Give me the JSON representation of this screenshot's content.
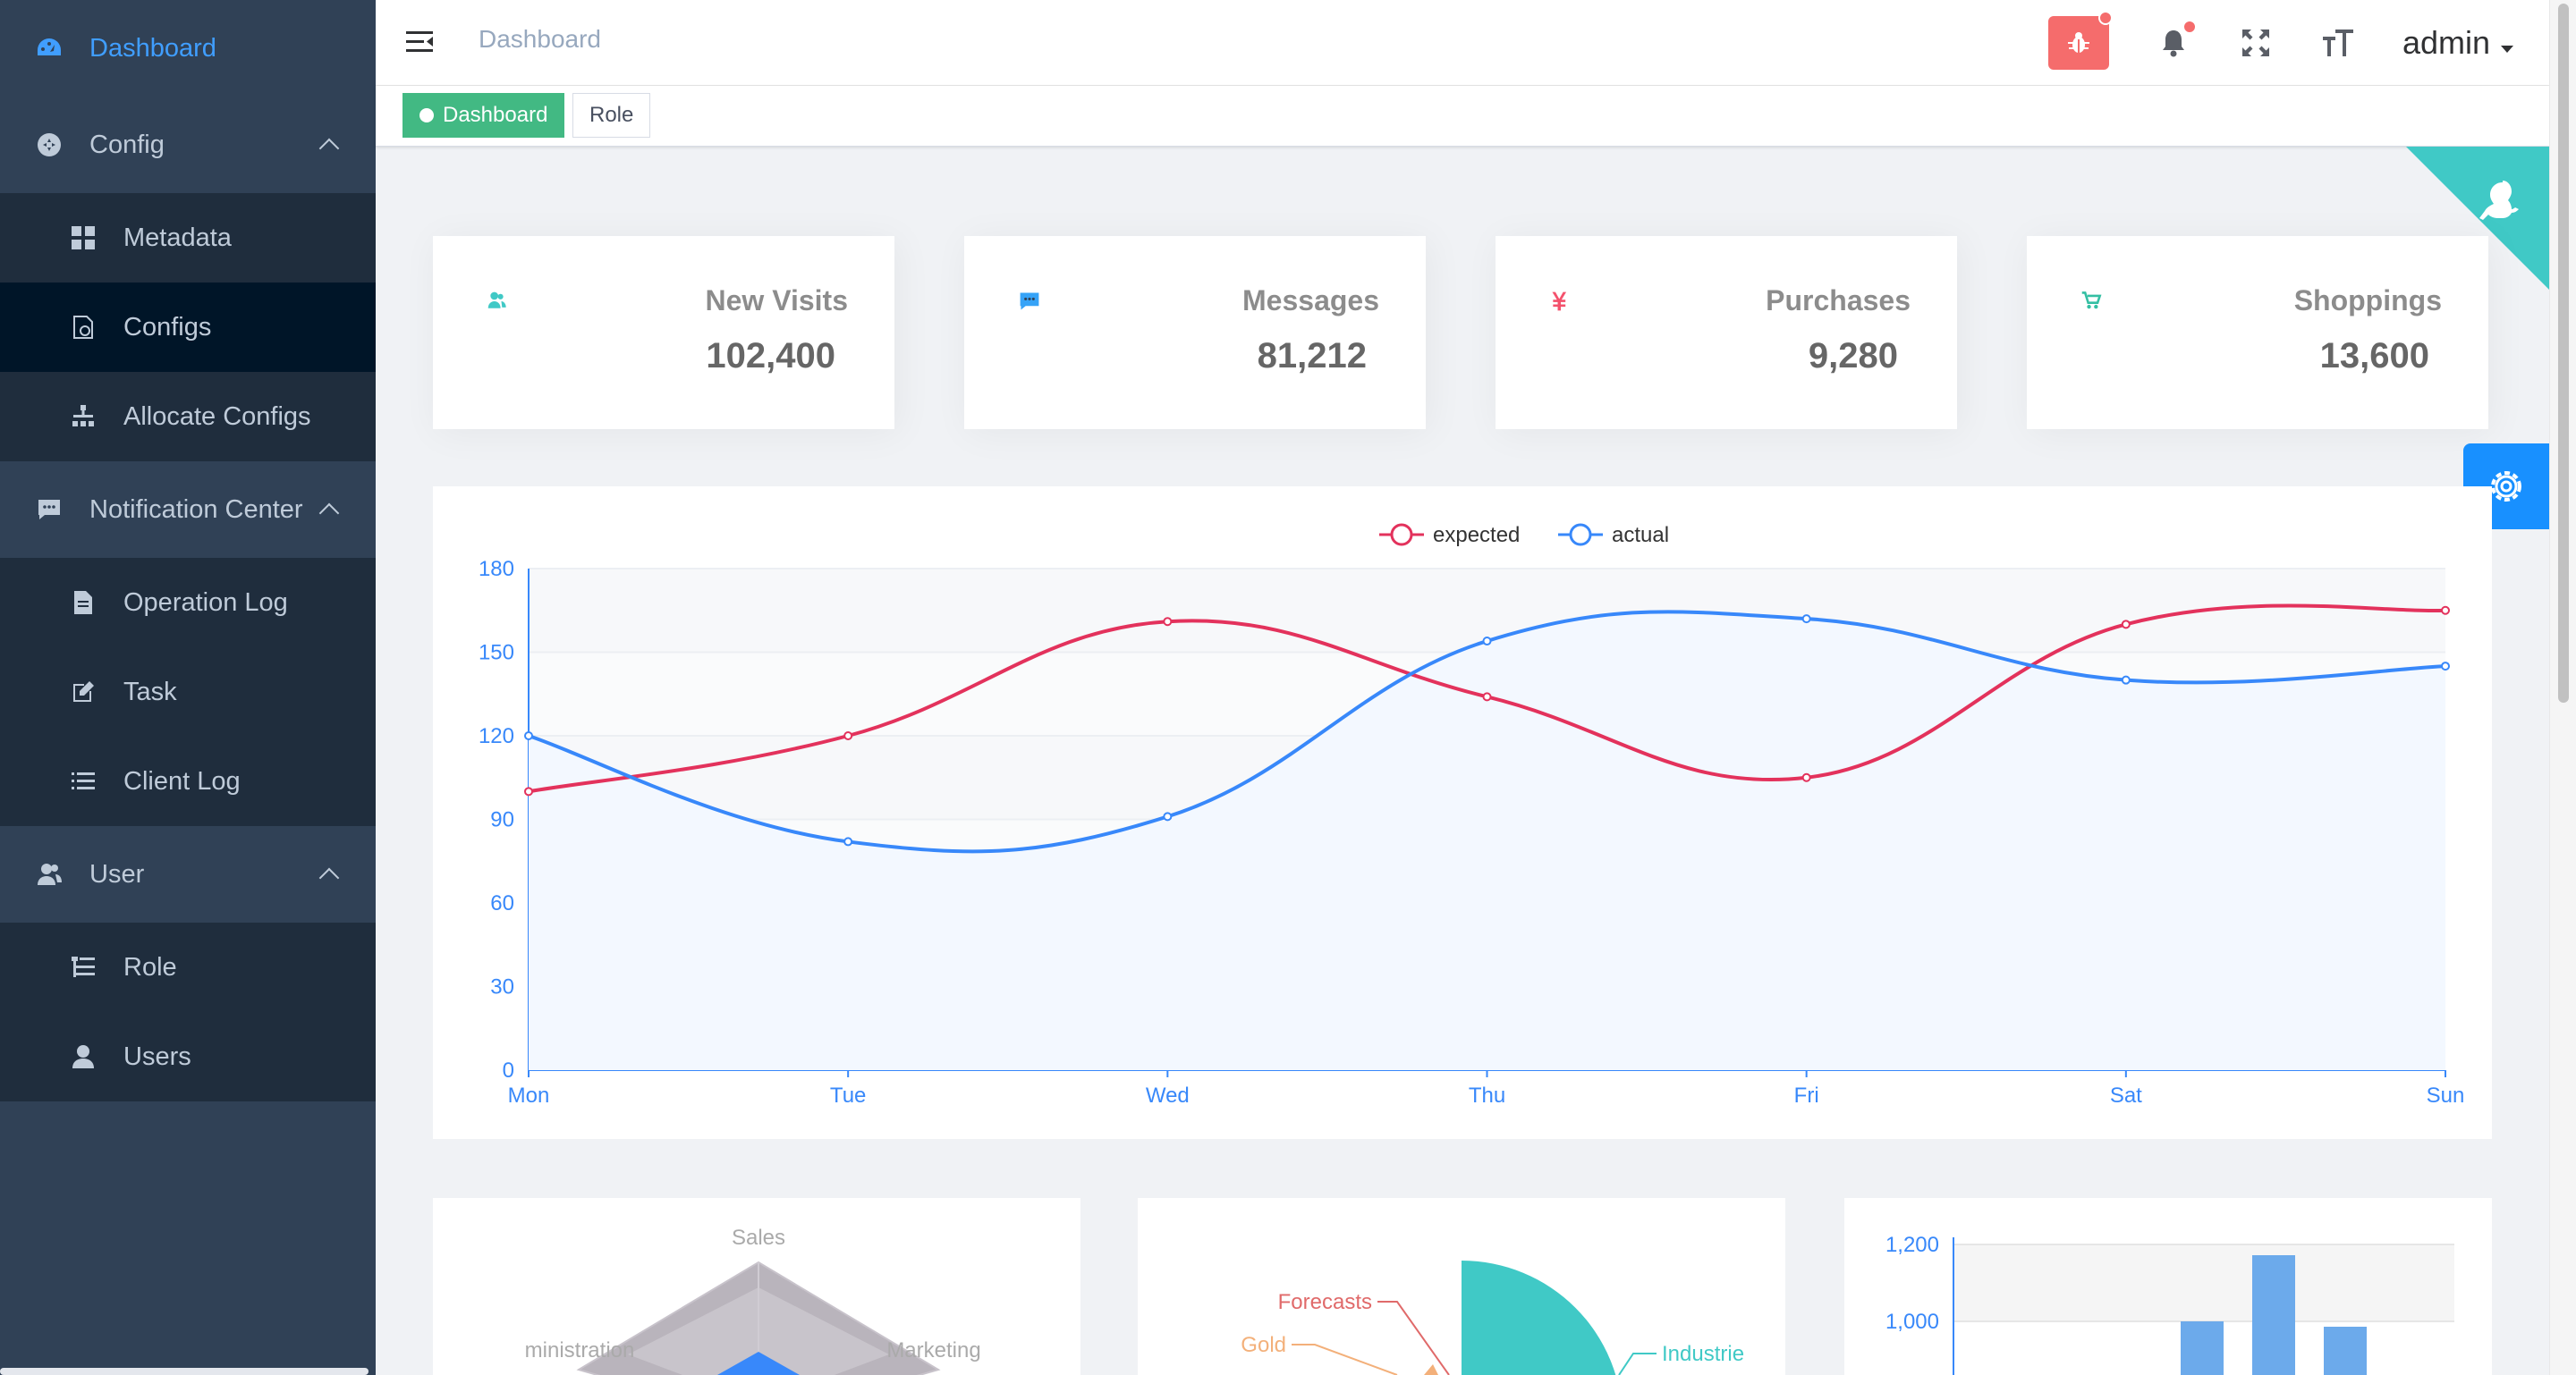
{
  "sidebar": {
    "items": [
      {
        "label": "Dashboard",
        "level": "top",
        "active": true,
        "icon": "dashboard-icon"
      },
      {
        "label": "Config",
        "level": "top",
        "expanded": true,
        "icon": "config-icon"
      },
      {
        "label": "Metadata",
        "level": "sub",
        "icon": "grid-icon"
      },
      {
        "label": "Configs",
        "level": "sub",
        "active": true,
        "icon": "file-settings-icon"
      },
      {
        "label": "Allocate Configs",
        "level": "sub",
        "icon": "tree-icon"
      },
      {
        "label": "Notification Center",
        "level": "top",
        "expanded": true,
        "icon": "message-icon"
      },
      {
        "label": "Operation Log",
        "level": "sub",
        "icon": "document-icon"
      },
      {
        "label": "Task",
        "level": "sub",
        "icon": "edit-icon"
      },
      {
        "label": "Client Log",
        "level": "sub",
        "icon": "list-icon"
      },
      {
        "label": "User",
        "level": "top",
        "expanded": true,
        "icon": "user-group-icon"
      },
      {
        "label": "Role",
        "level": "sub",
        "icon": "role-tree-icon"
      },
      {
        "label": "Users",
        "level": "sub",
        "icon": "user-icon"
      }
    ]
  },
  "navbar": {
    "breadcrumb": "Dashboard",
    "username": "admin",
    "icons": [
      "menu-fold-icon",
      "bug-icon",
      "bell-icon",
      "fullscreen-icon",
      "text-size-icon",
      "caret-down-icon"
    ]
  },
  "tags": [
    {
      "label": "Dashboard",
      "active": true
    },
    {
      "label": "Role",
      "active": false
    }
  ],
  "cards": [
    {
      "label": "New Visits",
      "value": "102,400",
      "icon": "peoples-icon",
      "color": "#40c9c6"
    },
    {
      "label": "Messages",
      "value": "81,212",
      "icon": "message-icon",
      "color": "#36a3f7"
    },
    {
      "label": "Purchases",
      "value": "9,280",
      "icon": "money-icon",
      "color": "#f4516c"
    },
    {
      "label": "Shoppings",
      "value": "13,600",
      "icon": "shopping-icon",
      "color": "#34bfa3"
    }
  ],
  "chart_data": [
    {
      "type": "line",
      "x": [
        "Mon",
        "Tue",
        "Wed",
        "Thu",
        "Fri",
        "Sat",
        "Sun"
      ],
      "series": [
        {
          "name": "expected",
          "values": [
            100,
            120,
            161,
            134,
            105,
            160,
            165
          ],
          "color": "#e3325c"
        },
        {
          "name": "actual",
          "values": [
            120,
            82,
            91,
            154,
            162,
            140,
            145
          ],
          "color": "#3888fa"
        }
      ],
      "ylim": [
        0,
        180
      ],
      "yticks": [
        0,
        30,
        60,
        90,
        120,
        150,
        180
      ],
      "legend": "top-center",
      "grid": "horizontal bands"
    },
    {
      "type": "radar",
      "indicators": [
        "Sales",
        "ministration",
        "Marketing"
      ]
    },
    {
      "type": "pie",
      "labels": [
        "Forecasts",
        "Gold",
        "Industrie"
      ]
    },
    {
      "type": "bar",
      "ytick_labels": [
        "1,000",
        "1,200"
      ]
    }
  ]
}
